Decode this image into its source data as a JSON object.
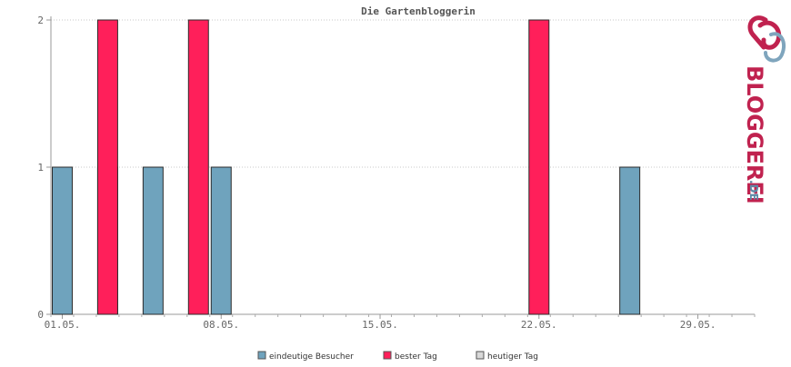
{
  "chart_data": {
    "type": "bar",
    "title": "Die Gartenbloggerin",
    "xlabel": "",
    "ylabel": "",
    "ylim": [
      0,
      2
    ],
    "y_ticks": [
      "0",
      "1",
      "2"
    ],
    "x_tick_labels": [
      "01.05.",
      "08.05.",
      "15.05.",
      "22.05.",
      "29.05."
    ],
    "x_tick_days": [
      1,
      8,
      15,
      22,
      29
    ],
    "days": [
      1,
      2,
      3,
      4,
      5,
      6,
      7,
      8,
      9,
      10,
      11,
      12,
      13,
      14,
      15,
      16,
      17,
      18,
      19,
      20,
      21,
      22,
      23,
      24,
      25,
      26,
      27,
      28,
      29,
      30,
      31
    ],
    "grid": true,
    "legend_position": "bottom",
    "series": [
      {
        "name": "eindeutige Besucher",
        "color": "#6fa3bd",
        "values": [
          1,
          0,
          1,
          0,
          1,
          0,
          0,
          1,
          0,
          0,
          0,
          0,
          0,
          0,
          0,
          0,
          0,
          0,
          0,
          0,
          0,
          0,
          0,
          0,
          0,
          1,
          0,
          0,
          0,
          0,
          0
        ]
      },
      {
        "name": "bester Tag",
        "color": "#ff1f5a",
        "values": [
          0,
          0,
          2,
          0,
          0,
          0,
          2,
          0,
          0,
          0,
          0,
          0,
          0,
          0,
          0,
          0,
          0,
          0,
          0,
          0,
          0,
          2,
          0,
          0,
          0,
          0,
          0,
          0,
          0,
          0,
          0
        ]
      },
      {
        "name": "heutiger Tag",
        "color": "#d8d8d8",
        "values": [
          0,
          0,
          0,
          0,
          0,
          0,
          0,
          0,
          0,
          0,
          0,
          0,
          0,
          0,
          0,
          0,
          0,
          0,
          0,
          0,
          0,
          0,
          0,
          0,
          0,
          0,
          0,
          0,
          0,
          0,
          0
        ]
      }
    ]
  },
  "brand": {
    "name": "BLOGGEREI",
    "suffix": ".DE",
    "icon": "bloggerei-logo-icon",
    "color_primary": "#c0224f",
    "color_secondary": "#5d8aa8"
  }
}
